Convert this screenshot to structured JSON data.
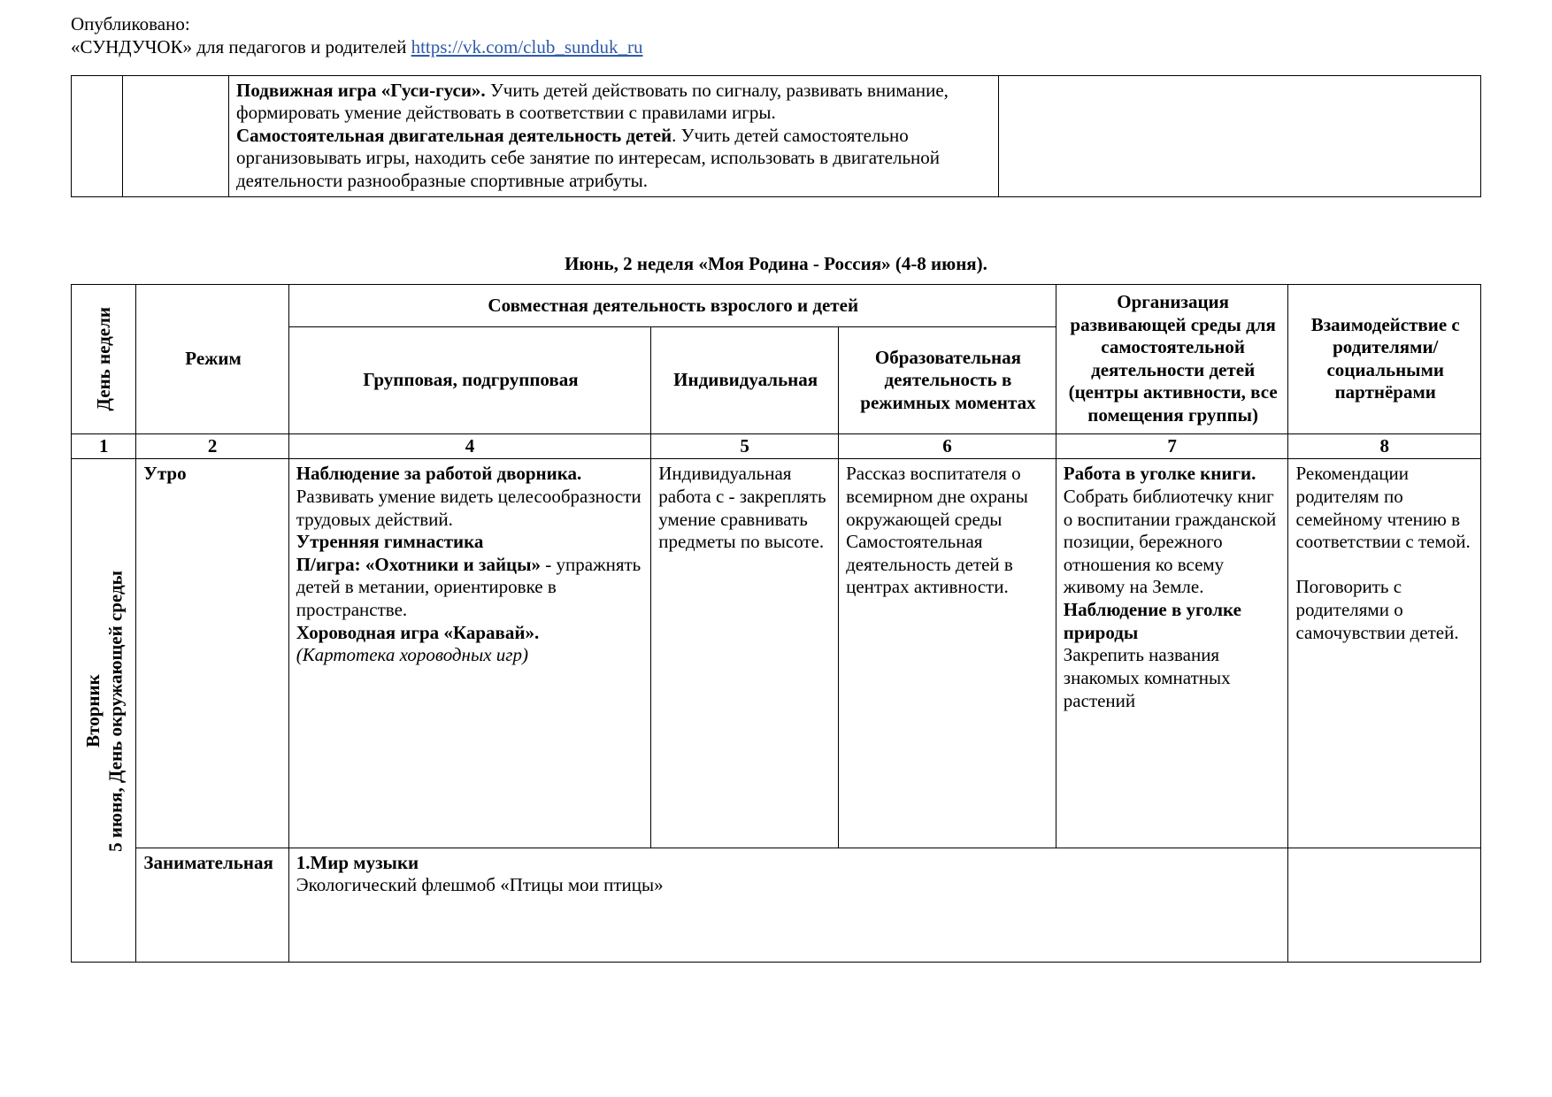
{
  "header": {
    "published": "Опубликовано:",
    "source_prefix": "«СУНДУЧОК» для педагогов и родителей ",
    "source_link": "https://vk.com/club_sunduk_ru"
  },
  "top_table": {
    "cell_main_html": "<span class=\"bold\">Подвижная игра «Гуси-гуси».</span> Учить детей действовать по сигналу, развивать внимание, формировать умение действовать в соответствии с правилами игры.<br><span class=\"bold\">Самостоятельная двигательная деятельность детей</span>. Учить детей самостоятельно организовывать игры, находить себе занятие по интересам, использовать в двигательной деятельности разнообразные спортивные атрибуты."
  },
  "section_title": "Июнь, 2 неделя «Моя Родина - Россия» (4-8 июня).",
  "plan": {
    "headers": {
      "day": "День недели",
      "regime": "Режим",
      "joint": "Совместная деятельность взрослого и детей",
      "group": "Групповая, подгрупповая",
      "individual": "Индивидуальная",
      "edu": "Образовательная деятельность в режимных моментах",
      "env": "Организация развивающей среды для самостоятельной деятельности детей (центры активности, все помещения группы)",
      "parents": "Взаимодейств​ие с родителями/ социальными партнёрами"
    },
    "nums": [
      "1",
      "2",
      "4",
      "5",
      "6",
      "7",
      "8"
    ],
    "day_label": "Вторник\n5 июня, День окружающей среды",
    "rows": {
      "morning": {
        "regime": "Утро",
        "group_html": "<span class=\"bold\">Наблюдение за работой дворника.</span> Развивать умение видеть целесообразности трудовых действий.<br><span class=\"bold\">Утренняя гимнастика</span><br><span class=\"bold\">П/игра: «Охотники и зайцы»</span> - упражнять детей в метании, ориентировке в пространстве.<br><span class=\"bold\">Хороводная игра «Каравай».</span><br><span class=\"italic\">(Картотека хороводных игр)</span>",
        "individual": "Индивидуальная работа с   - закреплять умение сравнивать предметы по высоте.",
        "edu": "Рассказ воспитателя о всемирном дне охраны окружающей среды Самостоятельная деятельность детей в центрах активности.",
        "env_html": "<span class=\"bold\">Работа в уголке книги.</span><br>Собрать библиотечку книг о воспитании гражданской позиции, бережного отношения ко всему живому на Земле.<br><span class=\"bold\">Наблюдение в уголке природы</span><br>Закрепить названия знакомых комнатных растений",
        "parents": "Рекомендации родителям по семейному чтению в соответствии с темой.\n\nПоговорить с родителями о самочувствии детей."
      },
      "lesson": {
        "regime": "Занимательн​ая",
        "content_html": "<span class=\"bold\">1.Мир музыки</span><br>Экологический флешмоб  «Птицы мои птицы»"
      }
    }
  }
}
